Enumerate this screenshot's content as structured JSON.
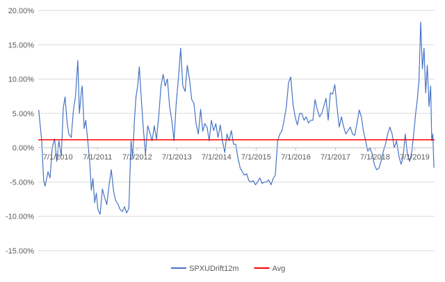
{
  "chart_data": {
    "type": "line",
    "title": "",
    "xlabel": "",
    "ylabel": "",
    "ylim": [
      -0.15,
      0.2
    ],
    "xlim": [
      "2010-01-01",
      "2019-12-31"
    ],
    "y_ticks": [
      "20.00%",
      "15.00%",
      "10.00%",
      "5.00%",
      "0.00%",
      "-5.00%",
      "-10.00%",
      "-15.00%"
    ],
    "y_tick_values": [
      0.2,
      0.15,
      0.1,
      0.05,
      0.0,
      -0.05,
      -0.1,
      -0.15
    ],
    "x_ticks": [
      "7/1/2010",
      "7/1/2011",
      "7/1/2012",
      "7/1/2013",
      "7/1/2014",
      "7/1/2015",
      "7/1/2016",
      "7/1/2017",
      "7/1/2018",
      "7/1/2019"
    ],
    "x_tick_dates": [
      "2010-07-01",
      "2011-07-01",
      "2012-07-01",
      "2013-07-01",
      "2014-07-01",
      "2015-07-01",
      "2016-07-01",
      "2017-07-01",
      "2018-07-01",
      "2019-07-01"
    ],
    "grid": true,
    "legend_position": "bottom",
    "series": [
      {
        "name": "SPXUDrift12m",
        "color": "#4472C4",
        "x": [
          "2010-01-05",
          "2010-02-01",
          "2010-02-20",
          "2010-03-05",
          "2010-04-01",
          "2010-04-20",
          "2010-05-10",
          "2010-06-01",
          "2010-06-20",
          "2010-07-10",
          "2010-08-01",
          "2010-08-20",
          "2010-09-05",
          "2010-09-25",
          "2010-10-10",
          "2010-11-01",
          "2010-11-20",
          "2010-12-10",
          "2011-01-01",
          "2011-01-15",
          "2011-02-01",
          "2011-02-10",
          "2011-02-28",
          "2011-03-15",
          "2011-04-01",
          "2011-04-20",
          "2011-05-05",
          "2011-05-20",
          "2011-06-05",
          "2011-06-20",
          "2011-07-05",
          "2011-07-25",
          "2011-08-15",
          "2011-09-05",
          "2011-09-25",
          "2011-10-15",
          "2011-11-05",
          "2011-11-25",
          "2011-12-15",
          "2012-01-05",
          "2012-01-25",
          "2012-02-15",
          "2012-03-05",
          "2012-03-25",
          "2012-04-15",
          "2012-05-05",
          "2012-05-20",
          "2012-06-05",
          "2012-06-20",
          "2012-07-05",
          "2012-07-20",
          "2012-08-05",
          "2012-08-25",
          "2012-09-15",
          "2012-10-05",
          "2012-10-25",
          "2012-11-15",
          "2012-12-05",
          "2012-12-25",
          "2013-01-15",
          "2013-02-05",
          "2013-02-25",
          "2013-03-15",
          "2013-04-05",
          "2013-04-25",
          "2013-05-15",
          "2013-06-05",
          "2013-06-25",
          "2013-07-15",
          "2013-08-05",
          "2013-08-25",
          "2013-09-15",
          "2013-10-05",
          "2013-10-25",
          "2013-11-15",
          "2013-12-05",
          "2013-12-25",
          "2014-01-15",
          "2014-02-05",
          "2014-02-25",
          "2014-03-15",
          "2014-04-05",
          "2014-04-25",
          "2014-05-15",
          "2014-06-05",
          "2014-06-25",
          "2014-07-15",
          "2014-08-05",
          "2014-08-25",
          "2014-09-15",
          "2014-10-05",
          "2014-10-25",
          "2014-11-15",
          "2014-12-05",
          "2014-12-25",
          "2015-01-15",
          "2015-02-05",
          "2015-02-25",
          "2015-03-15",
          "2015-04-05",
          "2015-04-25",
          "2015-05-15",
          "2015-06-05",
          "2015-06-25",
          "2015-07-15",
          "2015-08-05",
          "2015-08-25",
          "2015-09-15",
          "2015-10-05",
          "2015-10-25",
          "2015-11-15",
          "2015-12-05",
          "2015-12-25",
          "2016-01-15",
          "2016-02-05",
          "2016-02-25",
          "2016-03-15",
          "2016-04-05",
          "2016-04-25",
          "2016-05-15",
          "2016-06-05",
          "2016-06-25",
          "2016-07-15",
          "2016-08-05",
          "2016-08-25",
          "2016-09-15",
          "2016-10-05",
          "2016-10-25",
          "2016-11-15",
          "2016-12-05",
          "2016-12-25",
          "2017-01-15",
          "2017-02-05",
          "2017-02-25",
          "2017-03-15",
          "2017-04-05",
          "2017-04-25",
          "2017-05-15",
          "2017-06-05",
          "2017-06-25",
          "2017-07-15",
          "2017-08-05",
          "2017-08-25",
          "2017-09-15",
          "2017-10-05",
          "2017-10-25",
          "2017-11-15",
          "2017-12-05",
          "2017-12-25",
          "2018-01-15",
          "2018-02-05",
          "2018-02-25",
          "2018-03-15",
          "2018-04-05",
          "2018-04-25",
          "2018-05-15",
          "2018-06-05",
          "2018-06-25",
          "2018-07-15",
          "2018-08-05",
          "2018-08-25",
          "2018-09-15",
          "2018-10-05",
          "2018-10-25",
          "2018-11-15",
          "2018-12-05",
          "2018-12-25",
          "2019-01-15",
          "2019-02-05",
          "2019-02-25",
          "2019-03-15",
          "2019-04-05",
          "2019-04-25",
          "2019-05-15",
          "2019-06-05",
          "2019-06-25",
          "2019-07-10",
          "2019-07-25",
          "2019-08-10",
          "2019-08-25",
          "2019-09-10",
          "2019-09-25",
          "2019-10-10",
          "2019-10-25",
          "2019-11-10",
          "2019-11-25",
          "2019-12-05",
          "2019-12-15",
          "2019-12-25"
        ],
        "values": [
          0.055,
          0.012,
          -0.048,
          -0.056,
          -0.035,
          -0.044,
          0.0,
          0.013,
          -0.02,
          0.01,
          -0.012,
          0.058,
          0.074,
          0.035,
          0.02,
          0.015,
          0.053,
          0.075,
          0.127,
          0.05,
          0.08,
          0.09,
          0.028,
          0.04,
          0.012,
          -0.02,
          -0.062,
          -0.045,
          -0.08,
          -0.066,
          -0.09,
          -0.097,
          -0.06,
          -0.073,
          -0.083,
          -0.055,
          -0.032,
          -0.062,
          -0.077,
          -0.082,
          -0.09,
          -0.093,
          -0.086,
          -0.095,
          -0.088,
          0.01,
          -0.015,
          0.04,
          0.075,
          0.09,
          0.118,
          0.077,
          0.03,
          -0.01,
          0.032,
          0.022,
          0.01,
          0.032,
          0.012,
          0.046,
          0.09,
          0.107,
          0.09,
          0.1,
          0.06,
          0.04,
          0.01,
          0.065,
          0.1,
          0.145,
          0.09,
          0.082,
          0.12,
          0.1,
          0.07,
          0.065,
          0.035,
          0.02,
          0.056,
          0.024,
          0.035,
          0.03,
          0.01,
          0.04,
          0.025,
          0.035,
          0.015,
          0.033,
          0.01,
          -0.007,
          0.02,
          0.01,
          0.025,
          0.005,
          0.005,
          -0.015,
          -0.03,
          -0.035,
          -0.04,
          -0.038,
          -0.048,
          -0.05,
          -0.048,
          -0.054,
          -0.05,
          -0.044,
          -0.052,
          -0.05,
          -0.05,
          -0.047,
          -0.054,
          -0.045,
          -0.04,
          0.01,
          0.02,
          0.025,
          0.04,
          0.06,
          0.095,
          0.103,
          0.063,
          0.045,
          0.033,
          0.05,
          0.05,
          0.04,
          0.045,
          0.036,
          0.04,
          0.04,
          0.07,
          0.055,
          0.045,
          0.05,
          0.06,
          0.072,
          0.04,
          0.08,
          0.078,
          0.092,
          0.06,
          0.03,
          0.045,
          0.03,
          0.02,
          0.025,
          0.03,
          0.02,
          0.018,
          0.035,
          0.055,
          0.045,
          0.025,
          0.01,
          -0.005,
          0.0,
          -0.01,
          -0.025,
          -0.032,
          -0.03,
          -0.02,
          -0.005,
          0.005,
          0.02,
          0.03,
          0.02,
          0.0,
          0.01,
          -0.012,
          -0.024,
          -0.015,
          0.02,
          -0.01,
          -0.02,
          -0.005,
          0.025,
          0.05,
          0.07,
          0.1,
          0.183,
          0.115,
          0.145,
          0.08,
          0.12,
          0.06,
          0.09,
          0.01,
          0.02,
          -0.029
        ],
        "stroke_width_label": "thin"
      },
      {
        "name": "Avg",
        "color": "#FF0000",
        "x": [
          "2010-01-01",
          "2019-12-31"
        ],
        "values": [
          0.0115,
          0.0115
        ]
      }
    ]
  }
}
